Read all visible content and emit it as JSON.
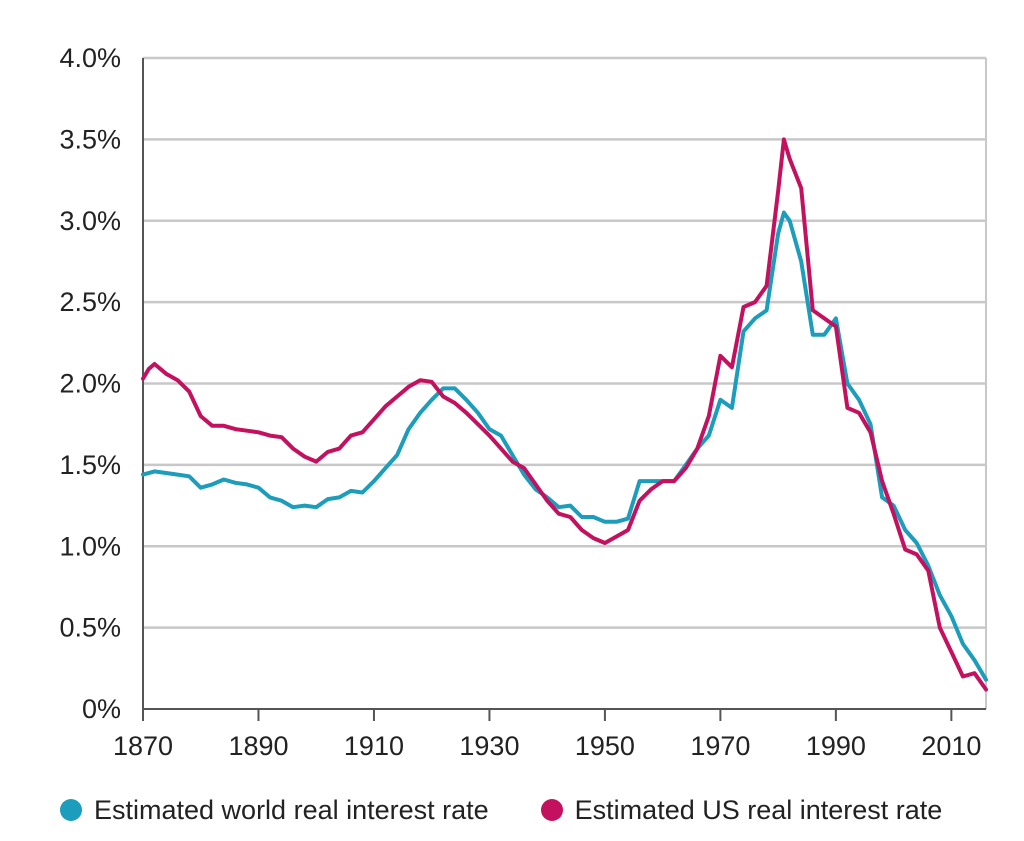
{
  "colors": {
    "world": "#1b9dbb",
    "us": "#c4115f",
    "grid": "#c8c8c8",
    "text": "#222222"
  },
  "chart_data": {
    "type": "line",
    "title": "",
    "xlabel": "",
    "ylabel": "",
    "xlim": [
      1870,
      2016
    ],
    "ylim": [
      0,
      4.0
    ],
    "grid": true,
    "legend_position": "bottom",
    "x_ticks": [
      1870,
      1890,
      1910,
      1930,
      1950,
      1970,
      1990,
      2010
    ],
    "x_tick_labels": [
      "1870",
      "1890",
      "1910",
      "1930",
      "1950",
      "1970",
      "1990",
      "2010"
    ],
    "y_ticks": [
      0,
      0.5,
      1.0,
      1.5,
      2.0,
      2.5,
      3.0,
      3.5,
      4.0
    ],
    "y_tick_labels": [
      "0%",
      "0.5%",
      "1.0%",
      "1.5%",
      "2.0%",
      "2.5%",
      "3.0%",
      "3.5%",
      "4.0%"
    ],
    "series": [
      {
        "name": "Estimated world real interest rate",
        "color_key": "world",
        "x": [
          1870,
          1872,
          1874,
          1876,
          1878,
          1880,
          1882,
          1884,
          1886,
          1888,
          1890,
          1892,
          1894,
          1896,
          1898,
          1900,
          1902,
          1904,
          1906,
          1908,
          1910,
          1912,
          1914,
          1916,
          1918,
          1920,
          1922,
          1924,
          1926,
          1928,
          1930,
          1932,
          1934,
          1936,
          1938,
          1940,
          1942,
          1944,
          1946,
          1948,
          1950,
          1952,
          1954,
          1956,
          1958,
          1960,
          1962,
          1964,
          1966,
          1968,
          1970,
          1972,
          1974,
          1976,
          1978,
          1980,
          1981,
          1982,
          1984,
          1986,
          1988,
          1990,
          1992,
          1994,
          1996,
          1998,
          2000,
          2002,
          2004,
          2006,
          2008,
          2010,
          2012,
          2014,
          2016
        ],
        "values": [
          1.44,
          1.46,
          1.45,
          1.44,
          1.43,
          1.36,
          1.38,
          1.41,
          1.39,
          1.38,
          1.36,
          1.3,
          1.28,
          1.24,
          1.25,
          1.24,
          1.29,
          1.3,
          1.34,
          1.33,
          1.4,
          1.48,
          1.56,
          1.72,
          1.82,
          1.9,
          1.97,
          1.97,
          1.9,
          1.82,
          1.72,
          1.68,
          1.56,
          1.44,
          1.35,
          1.3,
          1.24,
          1.25,
          1.18,
          1.18,
          1.15,
          1.15,
          1.17,
          1.4,
          1.4,
          1.4,
          1.4,
          1.5,
          1.6,
          1.68,
          1.9,
          1.85,
          2.32,
          2.4,
          2.45,
          2.92,
          3.05,
          3.0,
          2.75,
          2.3,
          2.3,
          2.4,
          2.0,
          1.9,
          1.75,
          1.3,
          1.25,
          1.1,
          1.02,
          0.88,
          0.7,
          0.57,
          0.4,
          0.3,
          0.18
        ]
      },
      {
        "name": "Estimated US real interest rate",
        "color_key": "us",
        "x": [
          1870,
          1871,
          1872,
          1874,
          1876,
          1878,
          1880,
          1882,
          1884,
          1886,
          1888,
          1890,
          1892,
          1894,
          1896,
          1898,
          1900,
          1902,
          1904,
          1906,
          1908,
          1910,
          1912,
          1914,
          1916,
          1918,
          1920,
          1922,
          1924,
          1926,
          1928,
          1930,
          1932,
          1934,
          1936,
          1938,
          1940,
          1942,
          1944,
          1946,
          1948,
          1950,
          1952,
          1954,
          1956,
          1958,
          1960,
          1962,
          1964,
          1966,
          1968,
          1970,
          1972,
          1974,
          1976,
          1978,
          1980,
          1981,
          1982,
          1984,
          1986,
          1988,
          1990,
          1992,
          1994,
          1996,
          1998,
          2000,
          2002,
          2004,
          2006,
          2008,
          2010,
          2012,
          2014,
          2016
        ],
        "values": [
          2.03,
          2.09,
          2.12,
          2.06,
          2.02,
          1.95,
          1.8,
          1.74,
          1.74,
          1.72,
          1.71,
          1.7,
          1.68,
          1.67,
          1.6,
          1.55,
          1.52,
          1.58,
          1.6,
          1.68,
          1.7,
          1.78,
          1.86,
          1.92,
          1.98,
          2.02,
          2.01,
          1.92,
          1.88,
          1.82,
          1.75,
          1.68,
          1.6,
          1.52,
          1.48,
          1.38,
          1.28,
          1.2,
          1.18,
          1.1,
          1.05,
          1.02,
          1.06,
          1.1,
          1.28,
          1.35,
          1.4,
          1.4,
          1.48,
          1.6,
          1.8,
          2.17,
          2.1,
          2.47,
          2.5,
          2.6,
          3.18,
          3.5,
          3.38,
          3.2,
          2.45,
          2.4,
          2.35,
          1.85,
          1.82,
          1.7,
          1.4,
          1.2,
          0.98,
          0.95,
          0.85,
          0.5,
          0.35,
          0.2,
          0.22,
          0.12
        ]
      }
    ]
  }
}
